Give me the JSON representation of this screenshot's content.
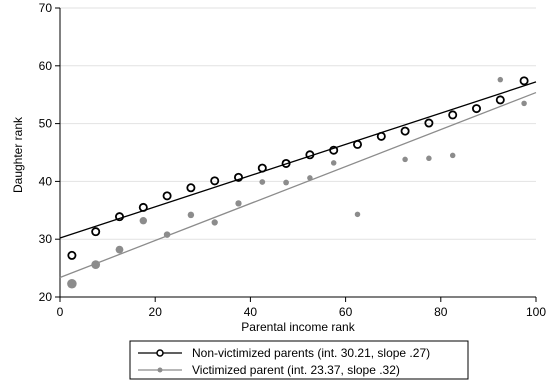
{
  "chart_data": {
    "type": "scatter",
    "xlabel": "Parental income rank",
    "ylabel": "Daughter rank",
    "xlim": [
      0,
      100
    ],
    "ylim": [
      20,
      70
    ],
    "xticks": [
      0,
      20,
      40,
      60,
      80,
      100
    ],
    "yticks": [
      20,
      30,
      40,
      50,
      60,
      70
    ],
    "grid": "horizontal",
    "legend_position": "bottom",
    "series": [
      {
        "name": "Non-victimized parents (int. 30.21, slope .27)",
        "color": "#000000",
        "marker": "hollow-circle",
        "fit": {
          "intercept": 30.21,
          "slope": 0.27
        },
        "x": [
          2.5,
          7.5,
          12.5,
          17.5,
          22.5,
          27.5,
          32.5,
          37.5,
          42.5,
          47.5,
          52.5,
          57.5,
          62.5,
          67.5,
          72.5,
          77.5,
          82.5,
          87.5,
          92.5,
          97.5
        ],
        "y": [
          27.2,
          31.3,
          33.9,
          35.5,
          37.5,
          38.9,
          40.1,
          40.7,
          42.3,
          43.1,
          44.6,
          45.4,
          46.4,
          47.8,
          48.7,
          50.1,
          51.5,
          52.6,
          54.1,
          57.4
        ]
      },
      {
        "name": "Victimized parent (int. 23.37, slope .32)",
        "color": "#8c8c8c",
        "marker": "filled-circle",
        "fit": {
          "intercept": 23.37,
          "slope": 0.32
        },
        "x": [
          2.5,
          7.5,
          12.5,
          17.5,
          22.5,
          27.5,
          32.5,
          37.5,
          42.5,
          47.5,
          52.5,
          57.5,
          62.5,
          72.5,
          77.5,
          82.5,
          92.5,
          97.5
        ],
        "y": [
          22.3,
          25.6,
          28.2,
          33.2,
          30.8,
          34.2,
          32.9,
          36.2,
          39.9,
          39.8,
          40.6,
          43.2,
          34.3,
          43.8,
          44.0,
          44.5,
          57.6,
          53.5
        ],
        "sizes": [
          3,
          2.5,
          2,
          1.8,
          1.4,
          1.4,
          1.3,
          1.3,
          1.1,
          1.1,
          1,
          1,
          1,
          1,
          1,
          1,
          1,
          1
        ]
      }
    ]
  }
}
